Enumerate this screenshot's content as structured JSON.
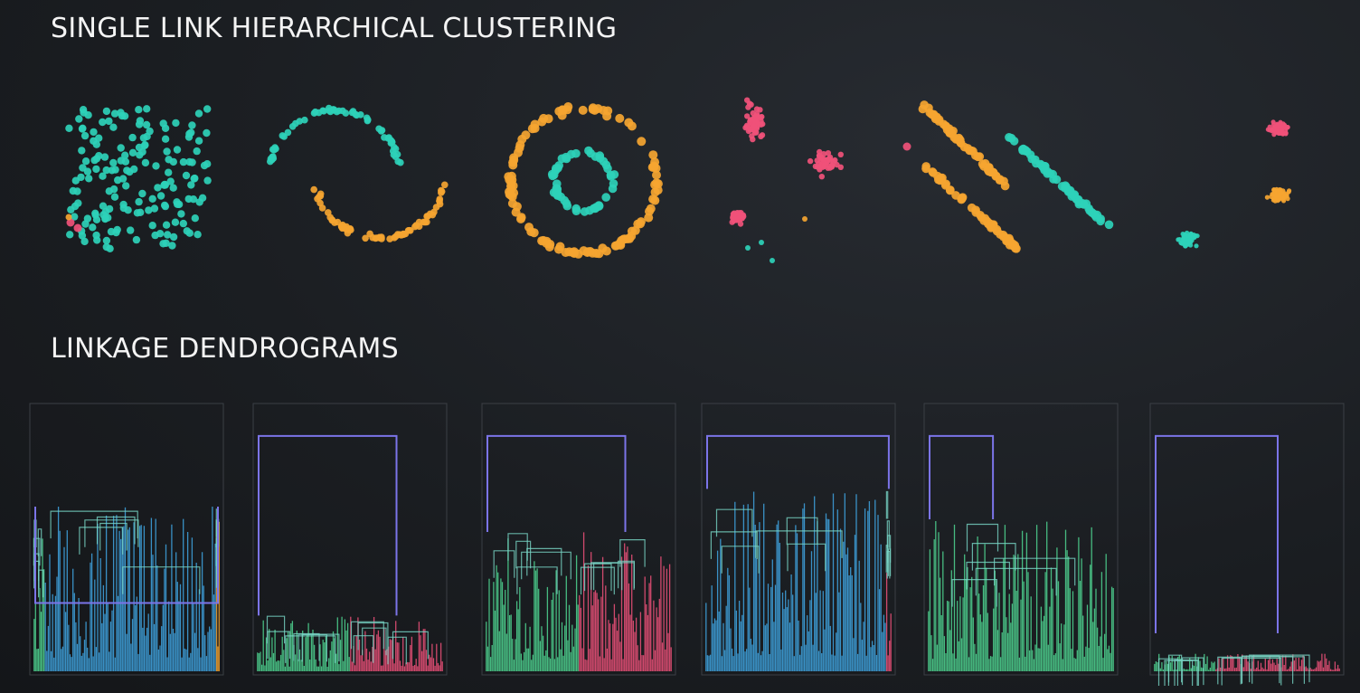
{
  "header": {
    "title": "SINGLE LINK HIERARCHICAL CLUSTERING",
    "dendrogram_title": "LINKAGE DENDROGRAMS"
  },
  "colors": {
    "teal": "#2ed1b8",
    "orange": "#f5a531",
    "pink": "#f0517a",
    "dendro_top": "#7b74e8",
    "dendro_green": "#4fd692",
    "dendro_blue": "#3fa6e3",
    "dendro_pink": "#f0517a",
    "dendro_teal": "#78d6c6",
    "panel_border": "#3b3f45"
  },
  "chart_data": [
    {
      "type": "scatter",
      "dataset": "uniform",
      "clusters": [
        {
          "color": "teal",
          "points": 170
        },
        {
          "color": "pink",
          "points": 2
        },
        {
          "color": "orange",
          "points": 1
        }
      ]
    },
    {
      "type": "scatter",
      "dataset": "moons",
      "clusters": [
        {
          "color": "teal",
          "points": 60
        },
        {
          "color": "orange",
          "points": 70
        }
      ]
    },
    {
      "type": "scatter",
      "dataset": "circles",
      "clusters": [
        {
          "color": "orange",
          "points": 110
        },
        {
          "color": "teal",
          "points": 50
        }
      ]
    },
    {
      "type": "scatter",
      "dataset": "varied_blobs",
      "clusters": [
        {
          "color": "pink",
          "points": 140
        },
        {
          "color": "teal",
          "points": 3
        },
        {
          "color": "orange",
          "points": 1
        }
      ]
    },
    {
      "type": "scatter",
      "dataset": "anisotropic",
      "clusters": [
        {
          "color": "orange",
          "points": 120
        },
        {
          "color": "teal",
          "points": 60
        },
        {
          "color": "pink",
          "points": 1
        }
      ]
    },
    {
      "type": "scatter",
      "dataset": "blobs",
      "clusters": [
        {
          "color": "pink",
          "points": 70
        },
        {
          "color": "orange",
          "points": 70
        },
        {
          "color": "teal",
          "points": 70
        }
      ]
    }
  ],
  "dendrograms": [
    {
      "dataset": "uniform",
      "root": 0.28,
      "groups": [
        {
          "color": "dendro_green",
          "share": 0.06
        },
        {
          "color": "dendro_blue",
          "share": 0.92
        },
        {
          "color": "dendro_orange",
          "share": 0.02
        }
      ],
      "spread": 0.65
    },
    {
      "dataset": "moons",
      "root": 0.93,
      "groups": [
        {
          "color": "dendro_green",
          "share": 0.5
        },
        {
          "color": "dendro_pink",
          "share": 0.5
        }
      ],
      "spread": 0.22
    },
    {
      "dataset": "circles",
      "root": 0.93,
      "groups": [
        {
          "color": "dendro_green",
          "share": 0.5
        },
        {
          "color": "dendro_pink",
          "share": 0.5
        }
      ],
      "spread": 0.55
    },
    {
      "dataset": "varied_blobs",
      "root": 0.93,
      "groups": [
        {
          "color": "dendro_blue",
          "share": 0.97
        },
        {
          "color": "dendro_pink",
          "share": 0.03
        }
      ],
      "spread": 0.72
    },
    {
      "dataset": "anisotropic",
      "root": 0.93,
      "groups": [
        {
          "color": "dendro_green",
          "share": 1.0
        }
      ],
      "spread": 0.6
    },
    {
      "dataset": "blobs",
      "root": 0.93,
      "groups": [
        {
          "color": "dendro_green",
          "share": 0.33
        },
        {
          "color": "dendro_pink",
          "share": 0.67
        }
      ],
      "spread": 0.07
    }
  ]
}
